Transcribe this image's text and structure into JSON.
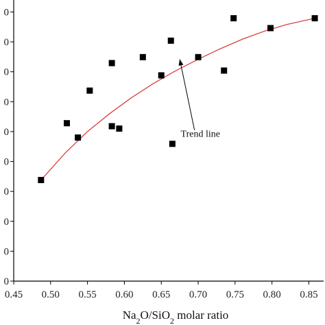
{
  "chart_data": {
    "type": "scatter",
    "xlabel_parts": [
      {
        "t": "Na",
        "sub": false
      },
      {
        "t": "2",
        "sub": true
      },
      {
        "t": "O/SiO",
        "sub": false
      },
      {
        "t": "2",
        "sub": true
      },
      {
        "t": " molar ratio",
        "sub": false
      }
    ],
    "xlim": [
      0.45,
      0.87
    ],
    "xticks": [
      "0.45",
      "0.50",
      "0.55",
      "0.60",
      "0.65",
      "0.70",
      "0.75",
      "0.80",
      "0.85"
    ],
    "ylim": [
      0,
      9.4
    ],
    "yticks": [
      0,
      1,
      2,
      3,
      4,
      5,
      6,
      7,
      8,
      9
    ],
    "ytick_labels": [
      "0",
      "0",
      "0",
      "0",
      "0",
      "0",
      "0",
      "0",
      "0",
      "0"
    ],
    "series": [
      {
        "marker": "square",
        "color": "#000000",
        "points": [
          [
            0.487,
            3.38
          ],
          [
            0.522,
            5.28
          ],
          [
            0.537,
            4.8
          ],
          [
            0.553,
            6.37
          ],
          [
            0.583,
            7.29
          ],
          [
            0.583,
            5.18
          ],
          [
            0.593,
            5.1
          ],
          [
            0.625,
            7.49
          ],
          [
            0.65,
            6.88
          ],
          [
            0.663,
            8.04
          ],
          [
            0.665,
            4.59
          ],
          [
            0.7,
            7.49
          ],
          [
            0.735,
            7.04
          ],
          [
            0.748,
            8.79
          ],
          [
            0.798,
            8.46
          ],
          [
            0.858,
            8.79
          ]
        ]
      }
    ],
    "trend_line": {
      "color": "#d94040",
      "points": [
        [
          0.487,
          3.38
        ],
        [
          0.52,
          4.29
        ],
        [
          0.55,
          5.0
        ],
        [
          0.58,
          5.6
        ],
        [
          0.61,
          6.14
        ],
        [
          0.64,
          6.62
        ],
        [
          0.67,
          7.04
        ],
        [
          0.7,
          7.42
        ],
        [
          0.73,
          7.77
        ],
        [
          0.76,
          8.09
        ],
        [
          0.79,
          8.36
        ],
        [
          0.82,
          8.58
        ],
        [
          0.858,
          8.79
        ]
      ]
    },
    "annotation": {
      "text": "Trend line",
      "at": [
        0.703,
        4.83
      ],
      "arrow_to": [
        0.675,
        7.42
      ]
    }
  }
}
